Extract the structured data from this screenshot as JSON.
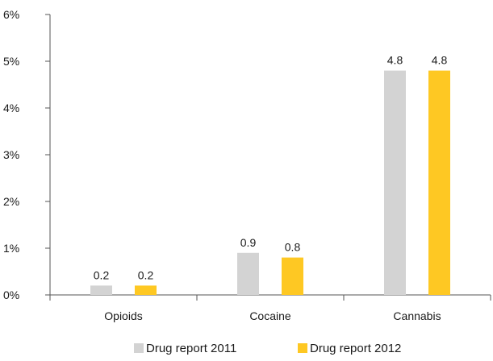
{
  "chart_data": {
    "type": "bar",
    "categories": [
      "Opioids",
      "Cocaine",
      "Cannabis"
    ],
    "series": [
      {
        "name": "Drug report 2011",
        "values": [
          0.2,
          0.9,
          4.8
        ],
        "color": "#d3d3d3"
      },
      {
        "name": "Drug report 2012",
        "values": [
          0.2,
          0.8,
          4.8
        ],
        "color": "#fec823"
      }
    ],
    "data_labels": [
      [
        "0.2",
        "0.9",
        "4.8"
      ],
      [
        "0.2",
        "0.8",
        "4.8"
      ]
    ],
    "ylim": [
      0,
      6
    ],
    "y_ticks": [
      {
        "value": 0,
        "label": "0%"
      },
      {
        "value": 1,
        "label": "1%"
      },
      {
        "value": 2,
        "label": "2%"
      },
      {
        "value": 3,
        "label": "3%"
      },
      {
        "value": 4,
        "label": "4%"
      },
      {
        "value": 5,
        "label": "5%"
      },
      {
        "value": 6,
        "label": "6%"
      }
    ],
    "title": "",
    "xlabel": "",
    "ylabel": "",
    "grid": false,
    "legend_position": "bottom"
  }
}
